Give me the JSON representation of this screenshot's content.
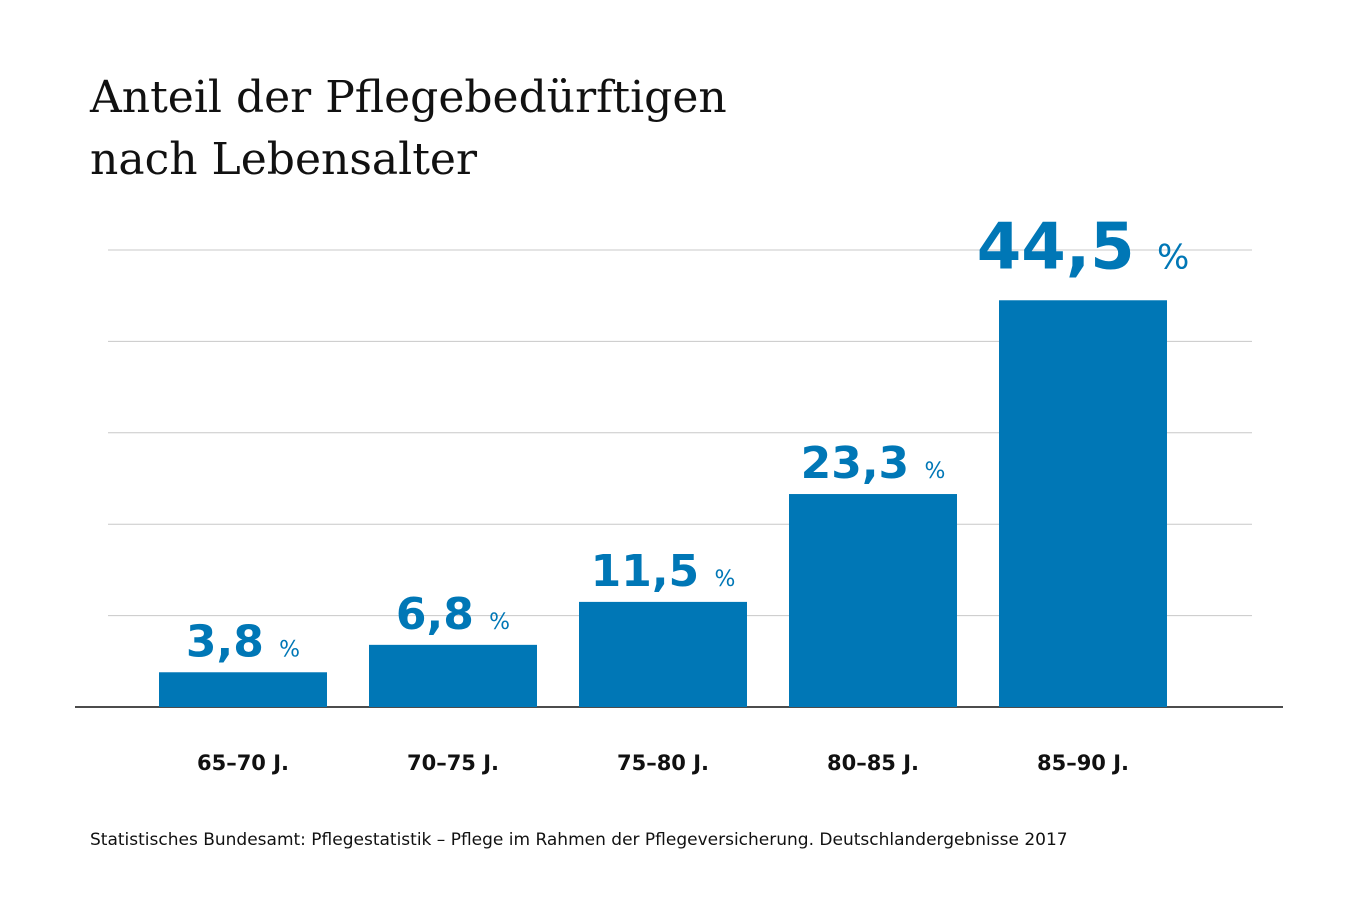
{
  "chart_data": {
    "type": "bar",
    "title_lines": [
      "Anteil der Pflegebedürftigen",
      "nach Lebensalter"
    ],
    "categories": [
      "65–70 J.",
      "70–75 J.",
      "75–80 J.",
      "80–85 J.",
      "85–90 J."
    ],
    "values": [
      3.8,
      6.8,
      11.5,
      23.3,
      44.5
    ],
    "value_labels": [
      "3,8 %",
      "6,8 %",
      "11,5 %",
      "23,3 %",
      "44,5 %"
    ],
    "color": "#0077b6",
    "ylim": [
      0,
      50
    ],
    "yticks": [
      10,
      20,
      30,
      40,
      50
    ],
    "grid": true,
    "source": "Statistisches Bundesamt: Pflegestatistik – Pflege im Rahmen der Pflegeversicherung. Deutschlandergebnisse 2017"
  }
}
